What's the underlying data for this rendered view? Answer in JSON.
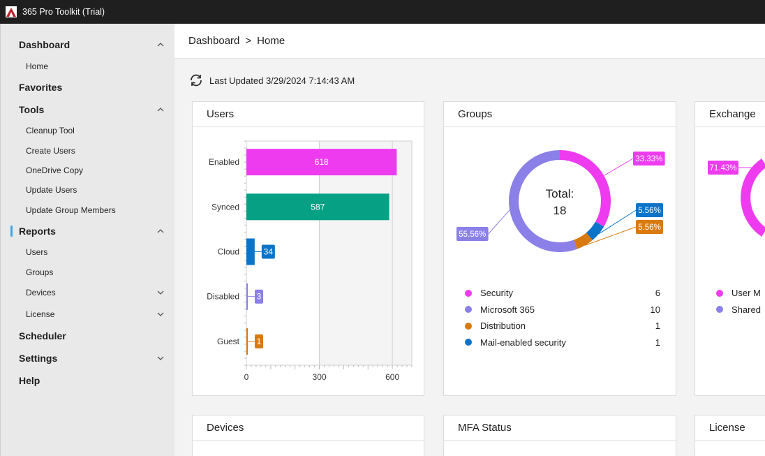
{
  "app": {
    "title": "365 Pro Toolkit (Trial)"
  },
  "sidebar": {
    "items": [
      {
        "label": "Dashboard",
        "type": "top",
        "chevron": "up"
      },
      {
        "label": "Home",
        "type": "sub"
      },
      {
        "label": "Favorites",
        "type": "top"
      },
      {
        "label": "Tools",
        "type": "top",
        "chevron": "up"
      },
      {
        "label": "Cleanup Tool",
        "type": "sub"
      },
      {
        "label": "Create Users",
        "type": "sub"
      },
      {
        "label": "OneDrive Copy",
        "type": "sub"
      },
      {
        "label": "Update Users",
        "type": "sub"
      },
      {
        "label": "Update Group Members",
        "type": "sub"
      },
      {
        "label": "Reports",
        "type": "top",
        "chevron": "up",
        "active": true
      },
      {
        "label": "Users",
        "type": "sub"
      },
      {
        "label": "Groups",
        "type": "sub"
      },
      {
        "label": "Devices",
        "type": "sub",
        "chevron": "down"
      },
      {
        "label": "License",
        "type": "sub",
        "chevron": "down"
      },
      {
        "label": "Scheduler",
        "type": "top"
      },
      {
        "label": "Settings",
        "type": "top",
        "chevron": "down"
      },
      {
        "label": "Help",
        "type": "top"
      }
    ]
  },
  "breadcrumb": {
    "root": "Dashboard",
    "separator": ">",
    "current": "Home"
  },
  "status": {
    "last_updated": "Last Updated 3/29/2024 7:14:43 AM"
  },
  "cards": {
    "users": {
      "title": "Users"
    },
    "groups": {
      "title": "Groups"
    },
    "exchange": {
      "title": "Exchange"
    },
    "devices": {
      "title": "Devices"
    },
    "mfa": {
      "title": "MFA Status"
    },
    "license": {
      "title": "License"
    }
  },
  "chart_data": [
    {
      "type": "bar",
      "orientation": "horizontal",
      "categories": [
        "Enabled",
        "Synced",
        "Cloud",
        "Disabled",
        "Guest"
      ],
      "values": [
        618,
        587,
        34,
        3,
        1
      ],
      "colors": [
        "#ee3bf0",
        "#06a084",
        "#0b74c9",
        "#8b7fe8",
        "#d97a0f"
      ],
      "xticks": [
        0,
        300,
        600
      ],
      "xlim": [
        0,
        680
      ]
    },
    {
      "type": "pie",
      "style": "donut",
      "center_label": "Total:",
      "total": "18",
      "slices": [
        {
          "label": "Security",
          "value": 6,
          "percent": "33.33%",
          "color": "#ee3bf0"
        },
        {
          "label": "Microsoft 365",
          "value": 10,
          "percent": "55.56%",
          "color": "#8b7fe8"
        },
        {
          "label": "Distribution",
          "value": 1,
          "percent": "5.56%",
          "color": "#d97a0f"
        },
        {
          "label": "Mail-enabled security",
          "value": 1,
          "percent": "5.56%",
          "color": "#0b74c9"
        }
      ]
    },
    {
      "type": "pie",
      "style": "donut",
      "visible_percent": "71.43%",
      "slices": [
        {
          "label": "User M",
          "color": "#ee3bf0"
        },
        {
          "label": "Shared",
          "color": "#8b7fe8"
        }
      ]
    }
  ]
}
